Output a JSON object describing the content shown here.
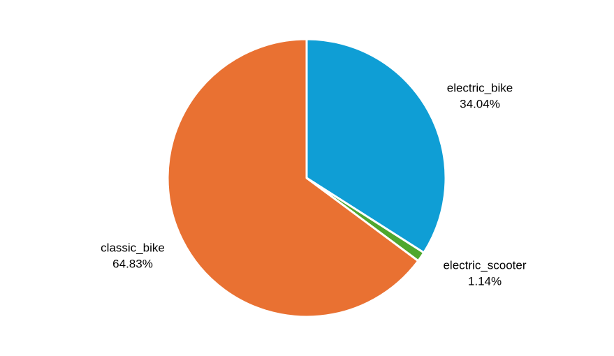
{
  "chart_data": {
    "type": "pie",
    "title": "",
    "slices": [
      {
        "label": "electric_bike",
        "value": 34.04,
        "percent_label": "34.04%",
        "color": "#0f9ed5"
      },
      {
        "label": "electric_scooter",
        "value": 1.14,
        "percent_label": "1.14%",
        "color": "#4ea72e"
      },
      {
        "label": "classic_bike",
        "value": 64.83,
        "percent_label": "64.83%",
        "color": "#e97132"
      }
    ],
    "start_angle": "12 o'clock",
    "direction": "clockwise",
    "slice_border_color": "#ffffff",
    "legend": "none",
    "data_labels": "outside"
  }
}
